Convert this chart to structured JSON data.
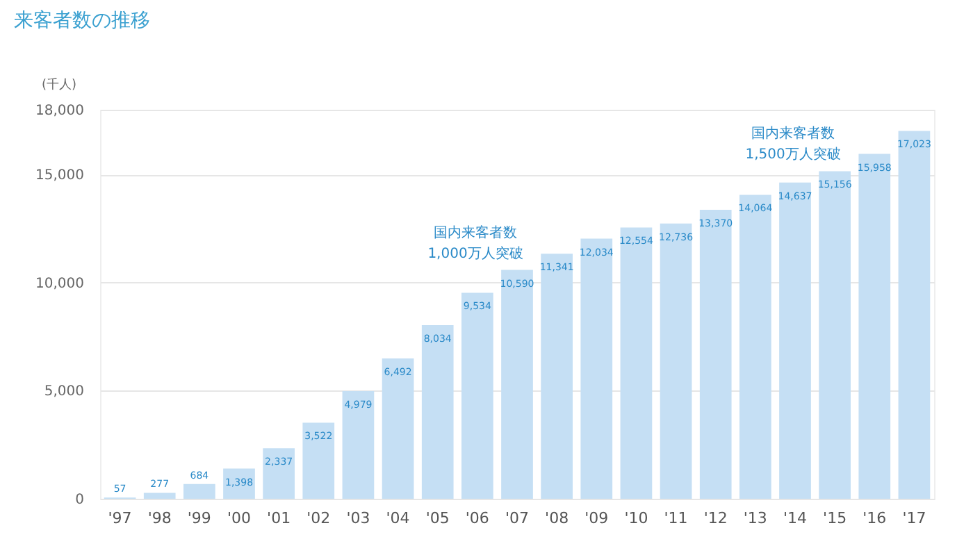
{
  "chart_data": {
    "type": "bar",
    "title": "来客者数の推移",
    "ylabel": "(千人)",
    "categories": [
      "'97",
      "'98",
      "'99",
      "'00",
      "'01",
      "'02",
      "'03",
      "'04",
      "'05",
      "'06",
      "'07",
      "'08",
      "'09",
      "'10",
      "'11",
      "'12",
      "'13",
      "'14",
      "'15",
      "'16",
      "'17"
    ],
    "values": [
      57,
      277,
      684,
      1398,
      2337,
      3522,
      4979,
      6492,
      8034,
      9534,
      10590,
      11341,
      12034,
      12554,
      12736,
      13370,
      14064,
      14637,
      15156,
      15958,
      17023
    ],
    "value_labels": [
      "57",
      "277",
      "684",
      "1,398",
      "2,337",
      "3,522",
      "4,979",
      "6,492",
      "8,034",
      "9,534",
      "10,590",
      "11,341",
      "12,034",
      "12,554",
      "12,736",
      "13,370",
      "14,064",
      "14,637",
      "15,156",
      "15,958",
      "17,023"
    ],
    "color": "#c5dff4",
    "ylim": [
      0,
      18000
    ],
    "yticks": [
      0,
      {
        "value": 5000,
        "label": "5,000"
      },
      {
        "value": 10000,
        "label": "10,000"
      },
      {
        "value": 15000,
        "label": "15,000"
      },
      {
        "value": 18000,
        "label": "18,000"
      }
    ],
    "grid": "y",
    "annotations": [
      {
        "text": "国内来客者数\n1,000万人突破",
        "x": "'07",
        "y": 10590
      },
      {
        "text": "国内来客者数\n1,500万人突破",
        "x": "'15",
        "y": 15156
      }
    ]
  }
}
